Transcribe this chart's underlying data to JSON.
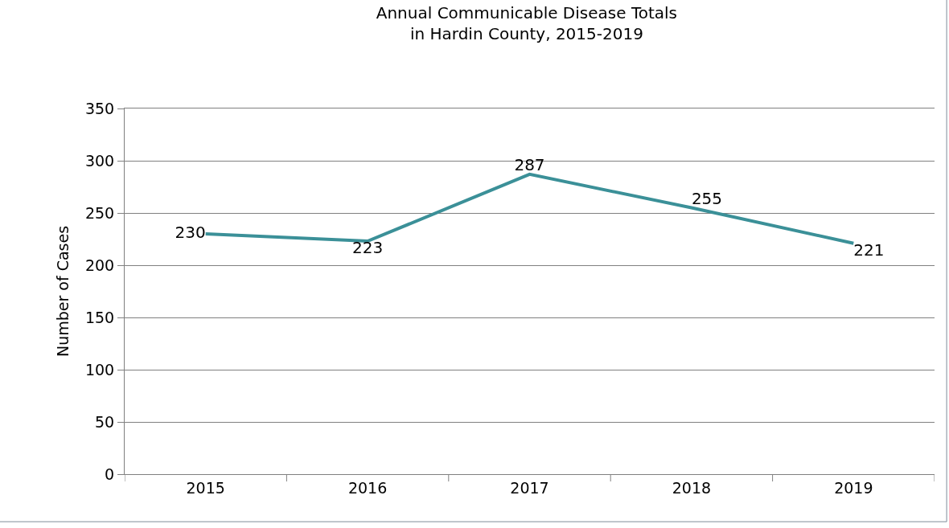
{
  "chart_data": {
    "type": "line",
    "title": "Annual Communicable Disease Totals\nin Hardin County, 2015-2019",
    "ylabel": "Number of Cases",
    "categories": [
      "2015",
      "2016",
      "2017",
      "2018",
      "2019"
    ],
    "series": [
      {
        "color": "#3b9098",
        "values": [
          230,
          223,
          287,
          255,
          221
        ]
      }
    ],
    "ylim": [
      0,
      350
    ],
    "yticks": [
      0,
      50,
      100,
      150,
      200,
      250,
      300,
      350
    ],
    "grid": "y",
    "data_labels": true,
    "marker": "none",
    "line_style": "solid"
  }
}
